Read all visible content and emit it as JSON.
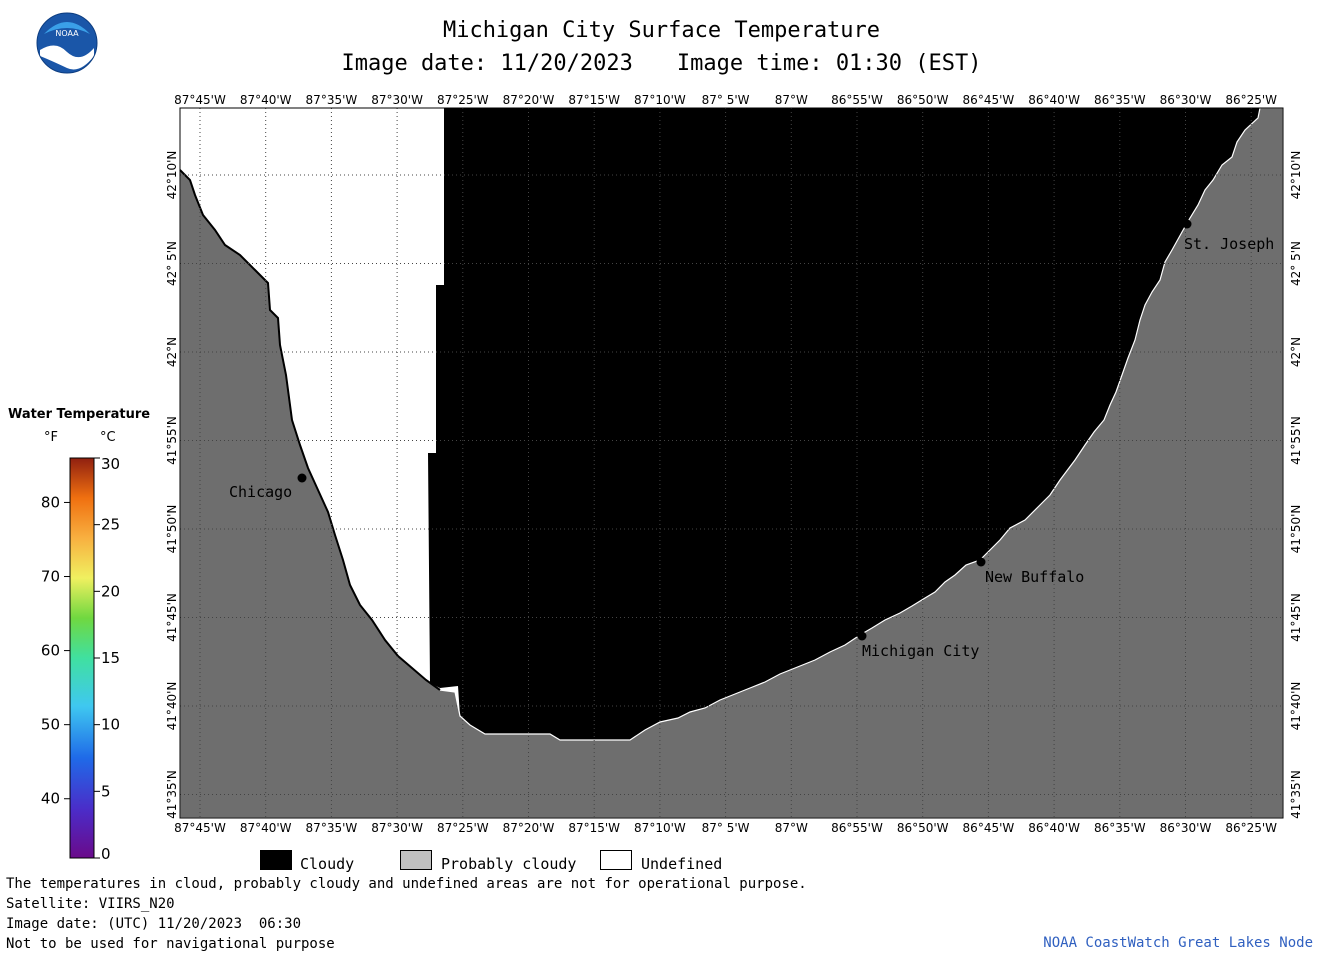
{
  "title": {
    "line1": "Michigan City Surface Temperature",
    "image_date": "Image date: 11/20/2023",
    "image_time": "Image time: 01:30 (EST)"
  },
  "logo_text": "NOAA",
  "lon_ticks": [
    "87°45'W",
    "87°40'W",
    "87°35'W",
    "87°30'W",
    "87°25'W",
    "87°20'W",
    "87°15'W",
    "87°10'W",
    "87° 5'W",
    "87°W",
    "86°55'W",
    "86°50'W",
    "86°45'W",
    "86°40'W",
    "86°35'W",
    "86°30'W",
    "86°25'W"
  ],
  "lat_ticks": [
    "42°10'N",
    "42° 5'N",
    "42°N",
    "41°55'N",
    "41°50'N",
    "41°45'N",
    "41°40'N",
    "41°35'N"
  ],
  "places": [
    {
      "name": "Chicago"
    },
    {
      "name": "New Buffalo"
    },
    {
      "name": "Michigan City"
    },
    {
      "name": "St. Joseph"
    }
  ],
  "legend": {
    "title": "Water Temperature",
    "unit_f": "°F",
    "unit_c": "°C",
    "f_ticks": [
      "80",
      "70",
      "60",
      "50",
      "40"
    ],
    "c_ticks": [
      "30",
      "25",
      "20",
      "15",
      "10",
      "5",
      "0"
    ]
  },
  "key": {
    "cloudy": "Cloudy",
    "probably_cloudy": "Probably cloudy",
    "undefined": "Undefined"
  },
  "colors": {
    "cloudy": "#000000",
    "land": "#6e6e6e",
    "probably_cloudy": "#c0c0c0",
    "undefined": "#ffffff",
    "credit": "#3060c0"
  },
  "footer": {
    "disclaimer": "The temperatures in cloud, probably cloudy and undefined areas are not for operational purpose.",
    "satellite": "Satellite: VIIRS_N20",
    "image_date_utc": "Image date: (UTC) 11/20/2023  06:30",
    "nav_warning": "Not to be used for navigational purpose",
    "credit": "NOAA CoastWatch Great Lakes Node"
  }
}
